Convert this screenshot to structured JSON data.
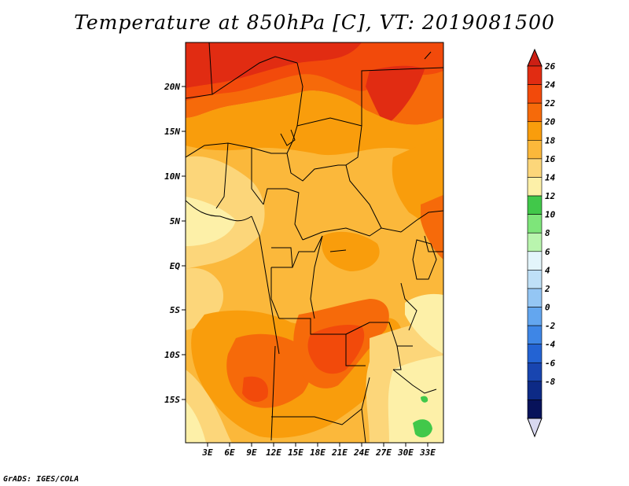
{
  "title": "Temperature at 850hPa [C], VT: 2019081500",
  "credit": "GrADS: IGES/COLA",
  "map": {
    "x_axis_labels": [
      "3E",
      "6E",
      "9E",
      "12E",
      "15E",
      "18E",
      "21E",
      "24E",
      "27E",
      "30E",
      "33E"
    ],
    "y_axis_labels": [
      "20N",
      "15N",
      "10N",
      "5N",
      "EQ",
      "5S",
      "10S",
      "15S"
    ]
  },
  "colorbar": {
    "levels": [
      "26",
      "24",
      "22",
      "20",
      "18",
      "16",
      "14",
      "12",
      "10",
      "8",
      "6",
      "4",
      "2",
      "0",
      "-2",
      "-4",
      "-6",
      "-8"
    ],
    "colors": [
      "#e12c12",
      "#f24a0b",
      "#f66a0a",
      "#f99d0c",
      "#fbb83b",
      "#fcd67a",
      "#fdf0a8",
      "#41c84a",
      "#7ee57a",
      "#b9f5ae",
      "#e3f5fb",
      "#bfe0f7",
      "#94c6f4",
      "#63a6ef",
      "#3e86e6",
      "#2363d3",
      "#1845b0",
      "#0d2a86",
      "#07125a"
    ],
    "low_color": "#d8d8f0",
    "high_color": "#cc1f14"
  }
}
